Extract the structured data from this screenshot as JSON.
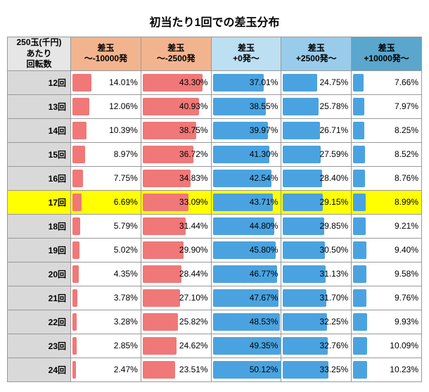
{
  "title": "初当たり1回での差玉分布",
  "rowheader": "250玉(千円)\nあたり\n回転数",
  "columns": [
    {
      "label": "差玉\n〜-10000発",
      "bg": "#f2b48f",
      "bar": "#f07878"
    },
    {
      "label": "差玉\n〜-2500発",
      "bg": "#f2b48f",
      "bar": "#f07878"
    },
    {
      "label": "差玉\n+0発〜",
      "bg": "#bcdff2",
      "bar": "#4aa3e0"
    },
    {
      "label": "差玉\n+2500発〜",
      "bg": "#99cceb",
      "bar": "#4aa3e0"
    },
    {
      "label": "差玉\n+10000発〜",
      "bg": "#5aa6cc",
      "bar": "#4aa3e0"
    }
  ],
  "bar_full_scale": 50.5,
  "highlight_row": 5,
  "rows": [
    {
      "label": "12回",
      "values": [
        14.01,
        43.3,
        37.01,
        24.75,
        7.66
      ]
    },
    {
      "label": "13回",
      "values": [
        12.06,
        40.93,
        38.55,
        25.78,
        7.97
      ]
    },
    {
      "label": "14回",
      "values": [
        10.39,
        38.75,
        39.97,
        26.71,
        8.25
      ]
    },
    {
      "label": "15回",
      "values": [
        8.97,
        36.72,
        41.3,
        27.59,
        8.52
      ]
    },
    {
      "label": "16回",
      "values": [
        7.75,
        34.83,
        42.54,
        28.4,
        8.76
      ]
    },
    {
      "label": "17回",
      "values": [
        6.69,
        33.09,
        43.71,
        29.15,
        8.99
      ]
    },
    {
      "label": "18回",
      "values": [
        5.79,
        31.44,
        44.8,
        29.85,
        9.21
      ]
    },
    {
      "label": "19回",
      "values": [
        5.02,
        29.9,
        45.8,
        30.5,
        9.4
      ]
    },
    {
      "label": "20回",
      "values": [
        4.35,
        28.44,
        46.77,
        31.13,
        9.58
      ]
    },
    {
      "label": "21回",
      "values": [
        3.78,
        27.1,
        47.67,
        31.7,
        9.76
      ]
    },
    {
      "label": "22回",
      "values": [
        3.28,
        25.82,
        48.53,
        32.25,
        9.93
      ]
    },
    {
      "label": "23回",
      "values": [
        2.85,
        24.62,
        49.35,
        32.76,
        10.09
      ]
    },
    {
      "label": "24回",
      "values": [
        2.47,
        23.51,
        50.12,
        33.25,
        10.23
      ]
    }
  ]
}
